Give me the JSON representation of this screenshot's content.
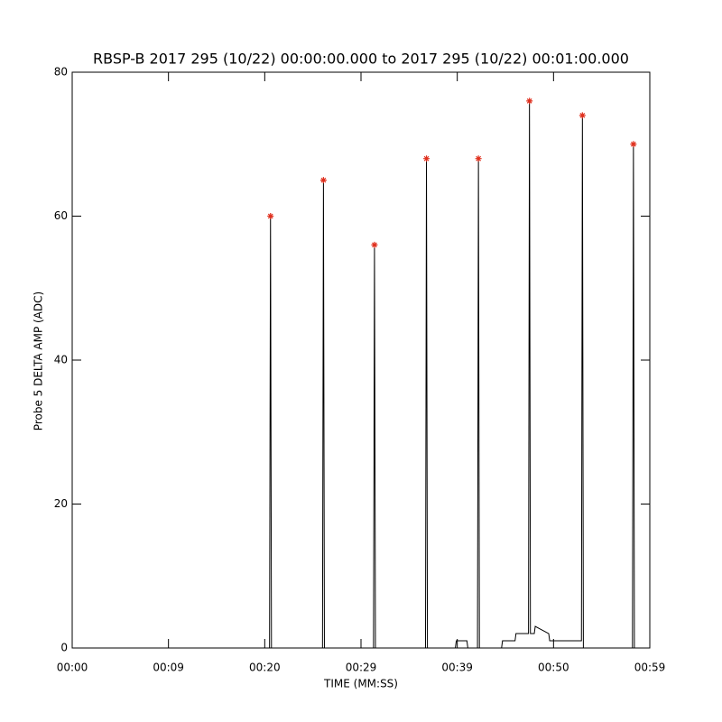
{
  "chart_data": {
    "type": "line",
    "title": "RBSP-B 2017 295 (10/22) 00:00:00.000 to 2017 295 (10/22) 00:01:00.000",
    "xlabel": "TIME (MM:SS)",
    "ylabel": "Probe 5 DELTA AMP (ADC)",
    "xlim": [
      0,
      60
    ],
    "ylim": [
      0,
      80
    ],
    "xticks": [
      {
        "value": 0,
        "label": "00:00"
      },
      {
        "value": 10,
        "label": "00:09"
      },
      {
        "value": 20,
        "label": "00:20"
      },
      {
        "value": 30,
        "label": "00:29"
      },
      {
        "value": 40,
        "label": "00:39"
      },
      {
        "value": 50,
        "label": "00:50"
      },
      {
        "value": 60,
        "label": "00:59"
      }
    ],
    "yticks": [
      0,
      20,
      40,
      60,
      80
    ],
    "series": [
      {
        "type": "line",
        "color": "#000000",
        "x": [
          0,
          20.5,
          20.6,
          20.7,
          26.0,
          26.1,
          26.2,
          31.3,
          31.4,
          31.5,
          36.7,
          36.8,
          36.9,
          39.8,
          39.9,
          41.0,
          41.1,
          42.1,
          42.2,
          42.3,
          44.6,
          44.7,
          46.0,
          46.1,
          47.4,
          47.5,
          47.6,
          48.0,
          48.1,
          49.5,
          49.6,
          52.9,
          53.0,
          53.1,
          58.2,
          58.3,
          58.4,
          60
        ],
        "values": [
          0,
          0,
          60,
          0,
          0,
          65,
          0,
          0,
          56,
          0,
          0,
          68,
          0,
          0,
          1,
          1,
          0,
          0,
          68,
          0,
          0,
          1,
          1,
          2,
          2,
          76,
          2,
          2,
          3,
          2,
          1,
          1,
          74,
          0,
          0,
          70,
          0,
          0
        ]
      },
      {
        "type": "scatter",
        "color": "#e0301e",
        "x": [
          20.6,
          26.1,
          31.4,
          36.8,
          42.2,
          47.5,
          53.0,
          58.3
        ],
        "values": [
          60,
          65,
          56,
          68,
          68,
          76,
          74,
          70
        ]
      }
    ]
  }
}
